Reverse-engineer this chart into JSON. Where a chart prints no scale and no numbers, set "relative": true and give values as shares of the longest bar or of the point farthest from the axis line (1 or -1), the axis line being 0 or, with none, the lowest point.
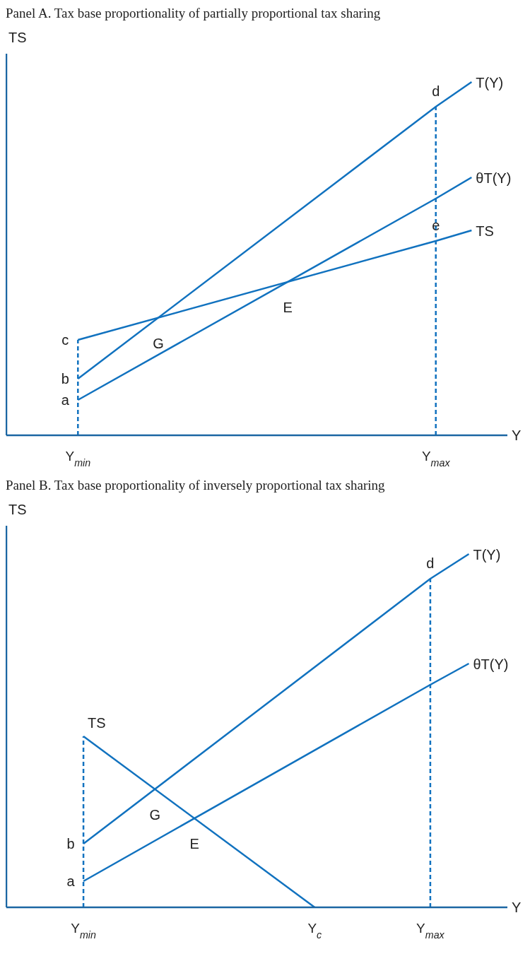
{
  "chart_data": [
    {
      "type": "line",
      "title": "Panel A. Tax base proportionality of partially proportional tax sharing",
      "xlabel": "Y",
      "ylabel": "TS",
      "relative": true,
      "line_style": "solid",
      "categories": [
        null,
        null,
        "Y$_{min}$",
        null,
        null,
        null,
        null,
        null,
        null,
        null,
        null,
        null,
        "Y$_{max}$",
        null,
        null
      ],
      "series": [
        {
          "name": "T(Y)",
          "color": "#1172bf",
          "values": [
            null,
            null,
            0.16,
            null,
            null,
            null,
            null,
            null,
            null,
            null,
            null,
            null,
            0.93,
            1,
            null
          ]
        },
        {
          "name": "θT(Y)",
          "color": "#1172bf",
          "values": [
            null,
            null,
            0.1,
            null,
            null,
            null,
            null,
            null,
            null,
            null,
            null,
            null,
            0.67,
            0.73,
            null
          ]
        },
        {
          "name": "TS",
          "color": "#1172bf",
          "values": [
            null,
            null,
            0.27,
            null,
            null,
            null,
            null,
            null,
            null,
            null,
            null,
            null,
            0.55,
            0.58,
            null
          ]
        }
      ],
      "ref_lines": [
        {
          "axis": "x",
          "value": "Y$_{min}$",
          "color": "#1172bf",
          "line_style": "dashed"
        },
        {
          "axis": "x",
          "value": "Y$_{max}$",
          "color": "#1172bf",
          "line_style": "dashed"
        }
      ],
      "annotations": [
        {
          "text": "a",
          "x": "Y$_{min}$",
          "y": 0.1
        },
        {
          "text": "b",
          "x": "Y$_{min}$",
          "y": 0.16
        },
        {
          "text": "c",
          "x": "Y$_{min}$",
          "y": 0.27
        },
        {
          "text": "d",
          "x": "Y$_{max}$",
          "y": 0.93
        },
        {
          "text": "e",
          "x": "Y$_{max}$",
          "y": 0.55
        },
        "E",
        "G"
      ]
    },
    {
      "type": "line",
      "title": "Panel B. Tax base proportionality of inversely proportional tax sharing",
      "xlabel": "Y",
      "ylabel": "TS",
      "relative": true,
      "line_style": "solid",
      "categories": [
        null,
        null,
        "Y$_{min}$",
        null,
        null,
        null,
        null,
        null,
        "Y$_{c}$",
        null,
        null,
        "Y$_{max}$",
        null,
        null
      ],
      "series": [
        {
          "name": "T(Y)",
          "color": "#1172bf",
          "values": [
            null,
            null,
            0.18,
            null,
            null,
            null,
            null,
            null,
            null,
            null,
            null,
            0.93,
            1,
            null
          ]
        },
        {
          "name": "θT(Y)",
          "color": "#1172bf",
          "values": [
            null,
            null,
            0.074,
            null,
            null,
            null,
            null,
            null,
            null,
            null,
            null,
            0.63,
            0.69,
            null
          ]
        },
        {
          "name": "TS",
          "color": "#1172bf",
          "values": [
            null,
            null,
            0.484,
            null,
            null,
            null,
            null,
            null,
            0,
            null,
            null,
            null,
            null,
            null
          ]
        }
      ],
      "ref_lines": [
        {
          "axis": "x",
          "value": "Y$_{min}$",
          "color": "#1172bf",
          "line_style": "dashed"
        },
        {
          "axis": "x",
          "value": "Y$_{max}$",
          "color": "#1172bf",
          "line_style": "dashed"
        }
      ],
      "annotations": [
        {
          "text": "a",
          "x": "Y$_{min}$",
          "y": 0.074
        },
        {
          "text": "b",
          "x": "Y$_{min}$",
          "y": 0.18
        },
        {
          "text": "d",
          "x": "Y$_{max}$",
          "y": 0.93
        },
        "E",
        "G"
      ]
    }
  ]
}
